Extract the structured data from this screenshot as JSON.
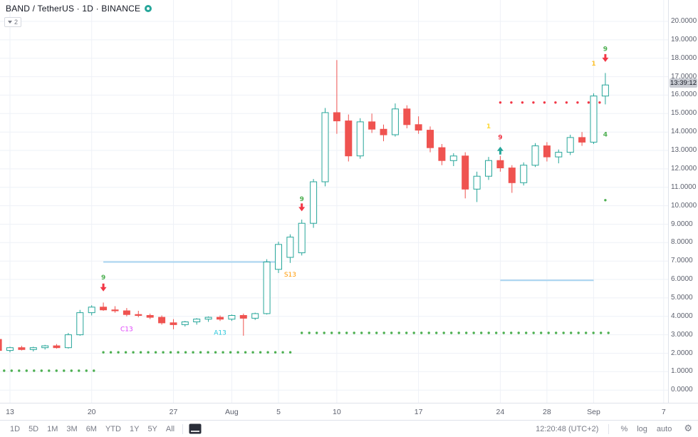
{
  "header": {
    "symbol_title": "BAND / TetherUS · 1D · BINANCE",
    "indicators_count": "2"
  },
  "icons": {
    "gear": "⚙"
  },
  "chart_data": {
    "type": "candlestick",
    "symbol": "BAND / TetherUS",
    "interval": "1D",
    "exchange": "BINANCE",
    "price_axis": {
      "min": 0,
      "max": 20,
      "step": 1,
      "labels": [
        "20.0000",
        "19.0000",
        "18.0000",
        "17.0000",
        "16.0000",
        "15.0000",
        "14.0000",
        "13.0000",
        "12.0000",
        "11.0000",
        "10.0000",
        "9.0000",
        "8.0000",
        "7.0000",
        "6.0000",
        "5.0000",
        "4.0000",
        "3.0000",
        "2.0000",
        "1.0000",
        "0.0000"
      ]
    },
    "time_axis": {
      "labels": [
        {
          "text": "13",
          "i": 1
        },
        {
          "text": "20",
          "i": 8
        },
        {
          "text": "27",
          "i": 15
        },
        {
          "text": "Aug",
          "i": 20
        },
        {
          "text": "5",
          "i": 24
        },
        {
          "text": "10",
          "i": 29
        },
        {
          "text": "17",
          "i": 36
        },
        {
          "text": "24",
          "i": 43
        },
        {
          "text": "28",
          "i": 47
        },
        {
          "text": "Sep",
          "i": 51
        },
        {
          "text": "7",
          "i": 57
        }
      ]
    },
    "candles": {
      "columns": [
        "date",
        "open",
        "high",
        "low",
        "close"
      ],
      "rows": [
        [
          "Jul 12",
          2.75,
          2.95,
          1.95,
          2.15
        ],
        [
          "Jul 13",
          2.15,
          2.35,
          2.05,
          2.3
        ],
        [
          "Jul 14",
          2.3,
          2.4,
          2.15,
          2.2
        ],
        [
          "Jul 15",
          2.2,
          2.35,
          2.1,
          2.3
        ],
        [
          "Jul 16",
          2.3,
          2.45,
          2.2,
          2.4
        ],
        [
          "Jul 17",
          2.4,
          2.5,
          2.25,
          2.3
        ],
        [
          "Jul 18",
          2.3,
          3.1,
          2.25,
          3.0
        ],
        [
          "Jul 19",
          3.0,
          4.35,
          2.95,
          4.2
        ],
        [
          "Jul 20",
          4.2,
          4.6,
          4.05,
          4.5
        ],
        [
          "Jul 21",
          4.5,
          4.75,
          4.3,
          4.35
        ],
        [
          "Jul 22",
          4.35,
          4.55,
          4.2,
          4.3
        ],
        [
          "Jul 23",
          4.3,
          4.45,
          4.0,
          4.1
        ],
        [
          "Jul 24",
          4.1,
          4.3,
          3.95,
          4.05
        ],
        [
          "Jul 25",
          4.05,
          4.15,
          3.85,
          3.95
        ],
        [
          "Jul 26",
          3.95,
          4.05,
          3.55,
          3.65
        ],
        [
          "Jul 27",
          3.65,
          3.85,
          3.3,
          3.55
        ],
        [
          "Jul 28",
          3.55,
          3.75,
          3.45,
          3.7
        ],
        [
          "Jul 29",
          3.7,
          3.9,
          3.55,
          3.85
        ],
        [
          "Jul 30",
          3.85,
          4.0,
          3.7,
          3.95
        ],
        [
          "Jul 31",
          3.95,
          4.05,
          3.75,
          3.85
        ],
        [
          "Aug 1",
          3.85,
          4.1,
          3.75,
          4.05
        ],
        [
          "Aug 2",
          4.05,
          4.15,
          2.95,
          3.9
        ],
        [
          "Aug 3",
          3.9,
          4.2,
          3.8,
          4.15
        ],
        [
          "Aug 4",
          4.15,
          7.1,
          4.1,
          6.95
        ],
        [
          "Aug 5",
          6.55,
          8.05,
          6.35,
          7.9
        ],
        [
          "Aug 6",
          7.2,
          8.45,
          6.9,
          8.3
        ],
        [
          "Aug 7",
          7.45,
          9.25,
          7.3,
          9.05
        ],
        [
          "Aug 8",
          9.05,
          11.45,
          8.8,
          11.3
        ],
        [
          "Aug 9",
          11.3,
          15.3,
          11.05,
          15.05
        ],
        [
          "Aug 10",
          15.05,
          17.9,
          13.9,
          14.6
        ],
        [
          "Aug 11",
          14.6,
          14.95,
          12.4,
          12.7
        ],
        [
          "Aug 12",
          12.7,
          14.75,
          12.55,
          14.55
        ],
        [
          "Aug 13",
          14.55,
          15.0,
          13.95,
          14.15
        ],
        [
          "Aug 14",
          14.15,
          14.4,
          13.5,
          13.85
        ],
        [
          "Aug 15",
          13.85,
          15.55,
          13.75,
          15.25
        ],
        [
          "Aug 16",
          15.25,
          15.45,
          14.2,
          14.4
        ],
        [
          "Aug 17",
          14.4,
          14.85,
          13.9,
          14.1
        ],
        [
          "Aug 18",
          14.1,
          14.3,
          12.9,
          13.15
        ],
        [
          "Aug 19",
          13.15,
          13.35,
          12.2,
          12.45
        ],
        [
          "Aug 20",
          12.45,
          12.85,
          12.15,
          12.7
        ],
        [
          "Aug 21",
          12.7,
          12.9,
          10.4,
          10.9
        ],
        [
          "Aug 22",
          10.9,
          11.85,
          10.2,
          11.6
        ],
        [
          "Aug 23",
          11.6,
          12.65,
          11.4,
          12.45
        ],
        [
          "Aug 24",
          12.45,
          12.7,
          11.85,
          12.05
        ],
        [
          "Aug 25",
          12.05,
          12.2,
          10.7,
          11.25
        ],
        [
          "Aug 26",
          11.25,
          12.35,
          11.1,
          12.2
        ],
        [
          "Aug 27",
          12.2,
          13.4,
          12.1,
          13.25
        ],
        [
          "Aug 28",
          13.25,
          13.45,
          12.4,
          12.65
        ],
        [
          "Aug 29",
          12.65,
          13.05,
          12.3,
          12.9
        ],
        [
          "Aug 30",
          12.9,
          13.85,
          12.75,
          13.7
        ],
        [
          "Aug 31",
          13.7,
          14.0,
          13.25,
          13.45
        ],
        [
          "Sep 1",
          13.45,
          16.1,
          13.35,
          15.95
        ],
        [
          "Sep 2",
          15.95,
          17.2,
          15.5,
          16.55
        ]
      ]
    },
    "levels": [
      {
        "price": 6.95,
        "from": 9,
        "to": 24,
        "color": "#a8d4f0"
      },
      {
        "price": 5.95,
        "from": 43,
        "to": 51,
        "color": "#a8d4f0"
      }
    ],
    "dot_rows": [
      {
        "price": 1.05,
        "from": 0.5,
        "to": 8.2,
        "spacing": 10.5,
        "color": "#4caf50"
      },
      {
        "price": 2.05,
        "from": 9.0,
        "to": 25.3,
        "spacing": 10.5,
        "color": "#4caf50"
      },
      {
        "price": 3.1,
        "from": 26.0,
        "to": 52.3,
        "spacing": 10.5,
        "color": "#4caf50"
      },
      {
        "price": 15.6,
        "from": 43.0,
        "to": 52.3,
        "spacing": 15.5,
        "color": "#f23645"
      }
    ],
    "annotations": [
      {
        "kind": "text",
        "text": "9",
        "color": "#4caf50",
        "i": 9,
        "price": 6.0
      },
      {
        "kind": "arrow-down",
        "color": "#f23645",
        "i": 9,
        "price": 5.35
      },
      {
        "kind": "text",
        "text": "C13",
        "color": "#e040fb",
        "i": 11,
        "price": 3.2
      },
      {
        "kind": "text",
        "text": "A13",
        "color": "#26c6da",
        "i": 19,
        "price": 3.0
      },
      {
        "kind": "text",
        "text": "S13",
        "color": "#ff9800",
        "i": 25,
        "price": 6.15
      },
      {
        "kind": "text",
        "text": "9",
        "color": "#4caf50",
        "i": 26,
        "price": 10.25
      },
      {
        "kind": "arrow-down",
        "color": "#f23645",
        "i": 26,
        "price": 9.7
      },
      {
        "kind": "text",
        "text": "1",
        "color": "#fdd835",
        "i": 42,
        "price": 14.2
      },
      {
        "kind": "text",
        "text": "9",
        "color": "#f23645",
        "i": 43,
        "price": 13.6
      },
      {
        "kind": "arrow-up",
        "color": "#26a69a",
        "i": 43,
        "price": 13.2
      },
      {
        "kind": "text",
        "text": "1",
        "color": "#fbc02d",
        "i": 51,
        "price": 17.6
      },
      {
        "kind": "text",
        "text": "9",
        "color": "#4caf50",
        "i": 52,
        "price": 18.4
      },
      {
        "kind": "arrow-down",
        "color": "#f23645",
        "i": 52,
        "price": 17.8
      },
      {
        "kind": "text",
        "text": "4",
        "color": "#4caf50",
        "i": 52,
        "price": 13.75
      },
      {
        "kind": "dot",
        "color": "#4caf50",
        "i": 52,
        "price": 10.3
      }
    ],
    "last_close": 16.55,
    "countdown": "13:39:12"
  },
  "toolbar": {
    "ranges": [
      "1D",
      "5D",
      "1M",
      "3M",
      "6M",
      "YTD",
      "1Y",
      "5Y",
      "All"
    ],
    "clock": "12:20:48 (UTC+2)",
    "percent_label": "%",
    "log_label": "log",
    "auto_label": "auto"
  },
  "colors": {
    "up": "#26a69a",
    "down": "#ef5350",
    "grid": "#eef1f7",
    "axis_text": "#5d616e",
    "level_blue": "#a8d4f0",
    "dots_green": "#4caf50",
    "dots_red": "#f23645",
    "countdown_bg": "#c9ccd3",
    "toolbar_text": "#787b86"
  }
}
